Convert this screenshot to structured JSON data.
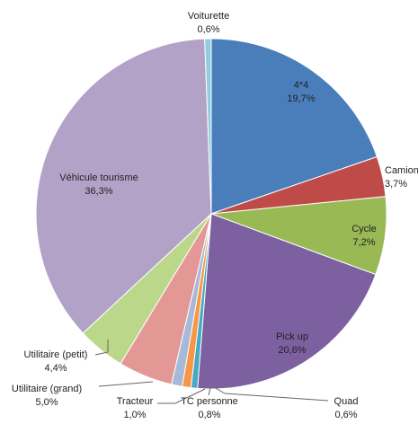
{
  "chart_data": {
    "type": "pie",
    "categories": [
      "4*4",
      "Camion",
      "Cycle",
      "Pick up",
      "Quad",
      "TC personne",
      "Tracteur",
      "Utilitaire (grand)",
      "Utilitaire (petit)",
      "Véhicule tourisme",
      "Voiturette"
    ],
    "values": [
      19.7,
      3.7,
      7.2,
      20.6,
      0.6,
      0.8,
      1.0,
      5.0,
      4.4,
      36.3,
      0.6
    ],
    "value_labels": [
      "19,7%",
      "3,7%",
      "7,2%",
      "20,6%",
      "0,6%",
      "0,8%",
      "1,0%",
      "5,0%",
      "4,4%",
      "36,3%",
      "0,6%"
    ],
    "colors": [
      "#4a7ebb",
      "#be4b48",
      "#98b954",
      "#7d60a0",
      "#46aac5",
      "#f79646",
      "#a6b9d9",
      "#e39896",
      "#bbd88a",
      "#b3a2c7",
      "#93cddd"
    ]
  }
}
